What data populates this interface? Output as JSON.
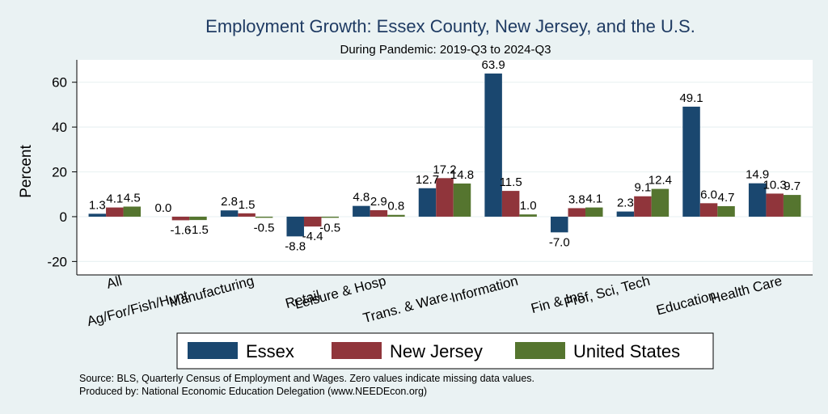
{
  "colors": {
    "background": "#eaf2f3",
    "plot_background": "#ffffff",
    "grid": "#eaf2f3",
    "title": "#1f3b63",
    "essex": "#1a476f",
    "new_jersey": "#90353b",
    "united_states": "#55752f"
  },
  "chart_data": {
    "type": "bar",
    "title": "Employment Growth: Essex County, New Jersey, and the U.S.",
    "subtitle": "During Pandemic: 2019-Q3 to 2024-Q3",
    "xlabel": "",
    "ylabel": "Percent",
    "ylim": [
      -26,
      70
    ],
    "yticks": [
      -20,
      0,
      20,
      40,
      60
    ],
    "yticks_labels": [
      "-20",
      "0",
      "20",
      "40",
      "60"
    ],
    "grid": true,
    "categories": [
      "All",
      "Ag/For/Fish/Hunt",
      "Manufacturing",
      "Retail",
      "Leisure & Hosp",
      "Trans. & Ware.",
      "Information",
      "Fin & Ins",
      "Prof, Sci, Tech",
      "Education",
      "Health Care"
    ],
    "series": [
      {
        "name": "Essex",
        "color": "#1a476f",
        "values": [
          1.3,
          0.0,
          2.8,
          -8.8,
          4.8,
          12.7,
          63.9,
          -7.0,
          2.3,
          49.1,
          14.9
        ],
        "labels": [
          "1.3",
          "0.0",
          "2.8",
          "-8.8",
          "4.8",
          "12.7",
          "63.9",
          "-7.0",
          "2.3",
          "49.1",
          "14.9"
        ]
      },
      {
        "name": "New Jersey",
        "color": "#90353b",
        "values": [
          4.1,
          -1.6,
          1.5,
          -4.4,
          2.9,
          17.2,
          11.5,
          3.8,
          9.1,
          6.0,
          10.3
        ],
        "labels": [
          "4.1",
          "-1.6",
          "1.5",
          "-4.4",
          "2.9",
          "17.2",
          "11.5",
          "3.8",
          "9.1",
          "6.0",
          "10.3"
        ]
      },
      {
        "name": "United States",
        "color": "#55752f",
        "values": [
          4.5,
          -1.5,
          -0.5,
          -0.5,
          0.8,
          14.8,
          1.0,
          4.1,
          12.4,
          4.7,
          9.7
        ],
        "labels": [
          "4.5",
          "-1.5",
          "-0.5",
          "-0.5",
          "0.8",
          "14.8",
          "1.0",
          "4.1",
          "12.4",
          "4.7",
          "9.7"
        ]
      }
    ],
    "legend_position": "bottom"
  },
  "footer": {
    "source": "Source: BLS, Quarterly Census of Employment and Wages. Zero values indicate missing data values.",
    "produced_by": "Produced by: National Economic Education Delegation (www.NEEDEcon.org)"
  }
}
